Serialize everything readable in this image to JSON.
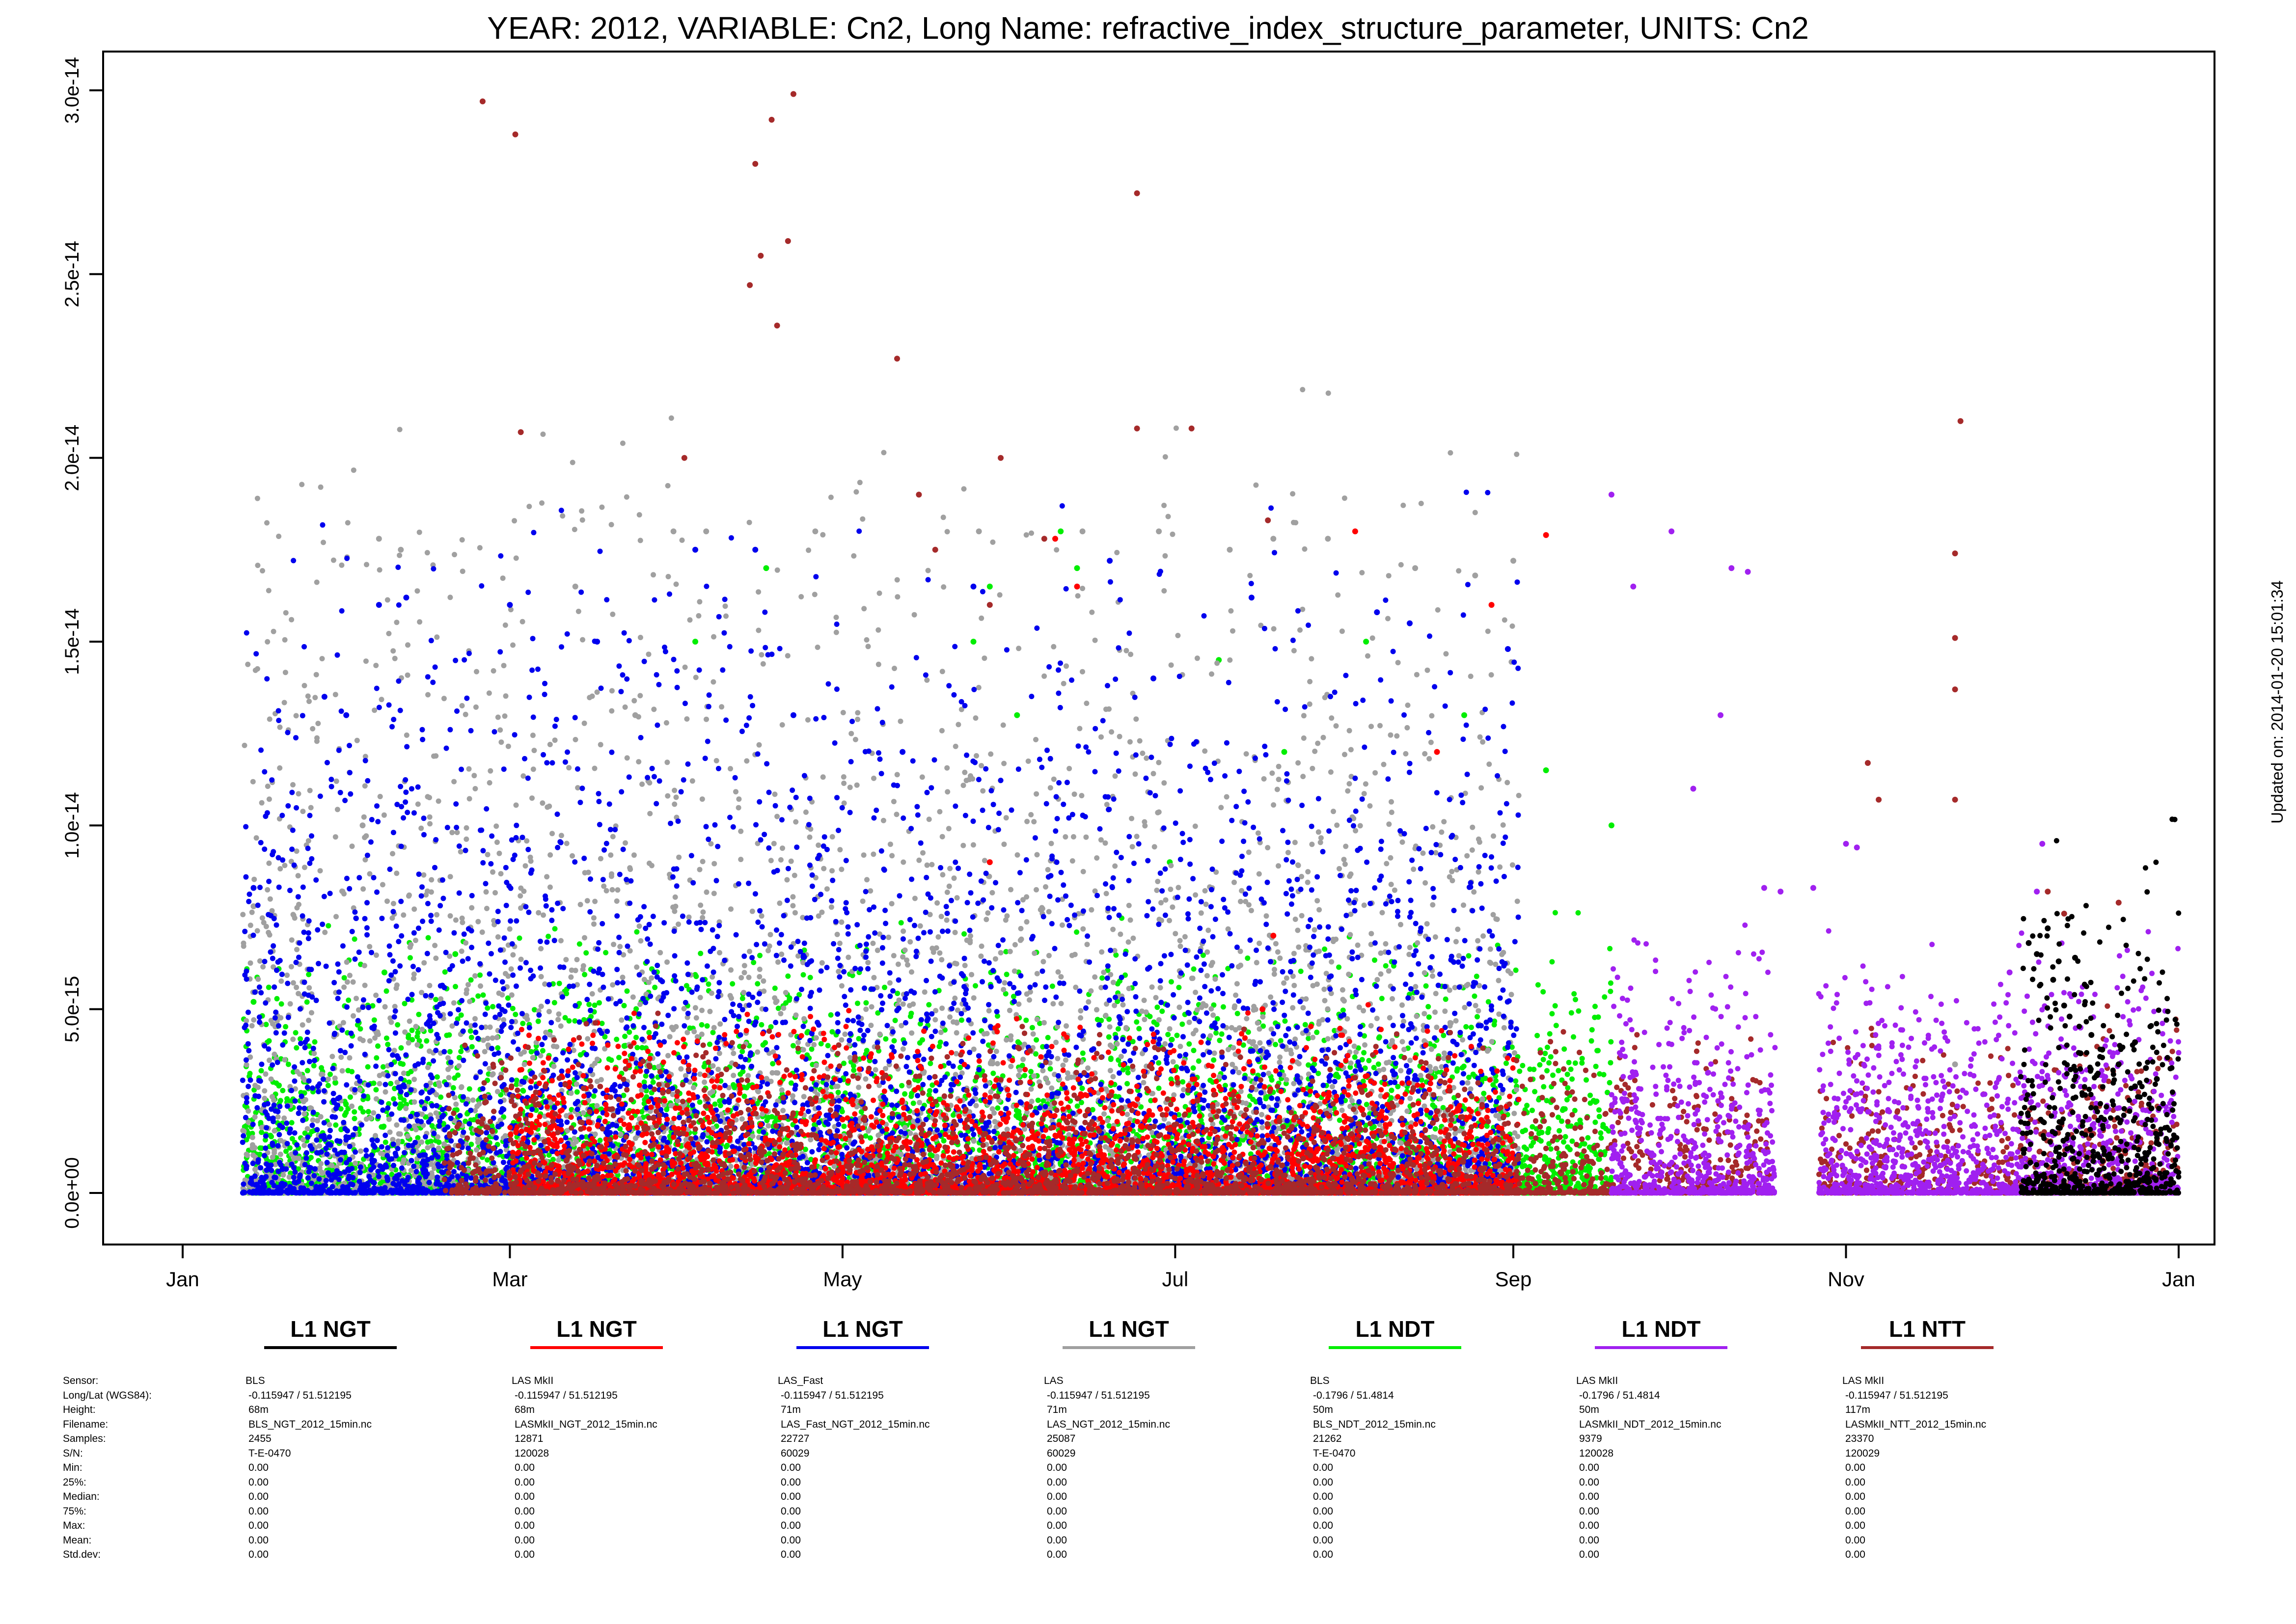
{
  "title": "YEAR: 2012, VARIABLE: Cn2, Long Name: refractive_index_structure_parameter, UNITS: Cn2",
  "updated": "Updated on: 2014-01-20 15:01:34",
  "chart_data": {
    "type": "scatter",
    "title": "YEAR: 2012, VARIABLE: Cn2, Long Name: refractive_index_structure_parameter, UNITS: Cn2",
    "xlabel": "",
    "ylabel": "",
    "x_ticks": [
      "Jan",
      "Mar",
      "May",
      "Jul",
      "Sep",
      "Nov",
      "Jan"
    ],
    "x_tick_days": [
      0,
      60,
      121,
      182,
      244,
      305,
      366
    ],
    "xlim": [
      0,
      366
    ],
    "y_ticks": [
      "0.0e+00",
      "5.0e-15",
      "1.0e-14",
      "1.5e-14",
      "2.0e-14",
      "2.5e-14",
      "3.0e-14"
    ],
    "y_tick_values": [
      0,
      5e-15,
      1e-14,
      1.5e-14,
      2e-14,
      2.5e-14,
      3e-14
    ],
    "ylim": [
      -1.2e-15,
      3.1e-14
    ],
    "grid": false,
    "series": [
      {
        "name": "L1 NGT",
        "color": "#000000",
        "day_range": [
          337,
          366
        ],
        "typical_max": 8e-15,
        "points": [
          [
            338.5,
            6.8e-15
          ],
          [
            340,
            6.5e-15
          ],
          [
            342,
            7.2e-15
          ],
          [
            344,
            6.3e-15
          ],
          [
            343,
            5.8e-15
          ],
          [
            345,
            5.1e-15
          ],
          [
            347,
            6.4e-15
          ],
          [
            346,
            4.8e-15
          ],
          [
            350,
            4.3e-15
          ],
          [
            352,
            3.9e-15
          ],
          [
            355,
            3.5e-15
          ],
          [
            358,
            4.1e-15
          ],
          [
            360,
            3.4e-15
          ],
          [
            361,
            2.3e-15
          ],
          [
            358,
            2.9e-15
          ],
          [
            362,
            3.1e-15
          ],
          [
            348,
            3.8e-15
          ],
          [
            351,
            3.2e-15
          ]
        ]
      },
      {
        "name": "L1 NGT",
        "color": "#ff0000",
        "day_range": [
          60,
          245
        ],
        "typical_max": 4e-15,
        "points": [
          [
            160,
            1.78e-14
          ],
          [
            164,
            1.65e-14
          ],
          [
            215,
            1.8e-14
          ],
          [
            240,
            1.6e-14
          ],
          [
            116,
            2.5e-15
          ],
          [
            121,
            2e-15
          ],
          [
            230,
            1.2e-14
          ],
          [
            250,
            1.79e-14
          ],
          [
            198,
            5e-15
          ],
          [
            148,
            9e-15
          ],
          [
            200,
            7e-15
          ],
          [
            189,
            1e-15
          ]
        ]
      },
      {
        "name": "L1 NGT",
        "color": "#0000ee",
        "day_range": [
          11,
          245
        ],
        "typical_max": 1.5e-14,
        "points": [
          [
            13,
            8.3e-15
          ],
          [
            26,
            1.35e-14
          ],
          [
            30,
            1.3e-14
          ],
          [
            36,
            1.6e-14
          ],
          [
            41,
            1.62e-14
          ],
          [
            60,
            1.6e-14
          ],
          [
            76,
            1.5e-14
          ],
          [
            94,
            1.75e-14
          ],
          [
            105,
            1.75e-14
          ],
          [
            145,
            1.65e-14
          ],
          [
            170,
            1.72e-14
          ],
          [
            196,
            1.62e-14
          ],
          [
            219,
            1.58e-14
          ],
          [
            225,
            1.55e-14
          ],
          [
            243,
            1.48e-14
          ],
          [
            132,
            1.2e-14
          ],
          [
            112,
            1.3e-14
          ],
          [
            178,
            1.4e-14
          ]
        ]
      },
      {
        "name": "L1 NGT",
        "color": "#a0a0a0",
        "day_range": [
          11,
          245
        ],
        "typical_max": 1.7e-14,
        "points": [
          [
            13,
            7.8e-15
          ],
          [
            36,
            1.78e-14
          ],
          [
            40,
            1.75e-14
          ],
          [
            72,
            1.65e-14
          ],
          [
            90,
            1.8e-14
          ],
          [
            96,
            1.8e-14
          ],
          [
            116,
            1.8e-14
          ],
          [
            146,
            1.8e-14
          ],
          [
            165,
            1.8e-14
          ],
          [
            179,
            1.8e-14
          ],
          [
            192,
            1.75e-14
          ],
          [
            200,
            1.78e-14
          ],
          [
            210,
            1.78e-14
          ],
          [
            226,
            1.7e-14
          ],
          [
            237,
            1.68e-14
          ],
          [
            244,
            1.72e-14
          ],
          [
            325,
            3.5e-15
          ],
          [
            360,
            3.4e-15
          ],
          [
            83,
            1.3e-14
          ],
          [
            33,
            1e-14
          ]
        ]
      },
      {
        "name": "L1 NDT",
        "color": "#00ee00",
        "day_range": [
          11,
          262
        ],
        "typical_max": 6e-15,
        "points": [
          [
            13,
            5.2e-15
          ],
          [
            20,
            2.5e-15
          ],
          [
            28,
            3e-15
          ],
          [
            37,
            6e-15
          ],
          [
            50,
            6.5e-15
          ],
          [
            81,
            4e-15
          ],
          [
            94,
            1.5e-14
          ],
          [
            107,
            1.7e-14
          ],
          [
            145,
            1.5e-14
          ],
          [
            148,
            1.65e-14
          ],
          [
            153,
            1.3e-14
          ],
          [
            161,
            1.8e-14
          ],
          [
            164,
            1.7e-14
          ],
          [
            190,
            1.45e-14
          ],
          [
            202,
            1.2e-14
          ],
          [
            217,
            1.5e-14
          ],
          [
            235,
            1.3e-14
          ],
          [
            250,
            1.15e-14
          ],
          [
            262,
            1e-14
          ],
          [
            181,
            9e-15
          ]
        ]
      },
      {
        "name": "L1 NDT",
        "color": "#a020f0",
        "day_range": [
          262,
          366
        ],
        "typical_max": 6e-15,
        "points": [
          [
            262,
            1.9e-14
          ],
          [
            266,
            1.65e-14
          ],
          [
            273,
            1.8e-14
          ],
          [
            284,
            1.7e-14
          ],
          [
            287,
            1.69e-14
          ],
          [
            290,
            8.3e-15
          ],
          [
            293,
            8.2e-15
          ],
          [
            299,
            8.3e-15
          ],
          [
            305,
            9.5e-15
          ],
          [
            307,
            9.4e-15
          ],
          [
            341,
            9.5e-15
          ],
          [
            335,
            6e-15
          ],
          [
            340,
            8.2e-15
          ],
          [
            348,
            4.5e-15
          ],
          [
            354,
            3.8e-15
          ],
          [
            365,
            2.7e-15
          ],
          [
            282,
            1.3e-14
          ],
          [
            277,
            1.1e-14
          ]
        ]
      },
      {
        "name": "L1 NTT",
        "color": "#a52a2a",
        "day_range": [
          48,
          366
        ],
        "typical_max": 4e-15,
        "points": [
          [
            55,
            2.97e-14
          ],
          [
            61,
            2.88e-14
          ],
          [
            62,
            2.07e-14
          ],
          [
            92,
            2e-14
          ],
          [
            105,
            2.8e-14
          ],
          [
            108,
            2.92e-14
          ],
          [
            112,
            2.99e-14
          ],
          [
            111,
            2.59e-14
          ],
          [
            109,
            2.36e-14
          ],
          [
            104,
            2.47e-14
          ],
          [
            106,
            2.55e-14
          ],
          [
            131,
            2.27e-14
          ],
          [
            150,
            2e-14
          ],
          [
            175,
            2.72e-14
          ],
          [
            175,
            2.08e-14
          ],
          [
            185,
            2.08e-14
          ],
          [
            199,
            1.83e-14
          ],
          [
            309,
            1.17e-14
          ],
          [
            311,
            1.07e-14
          ],
          [
            326,
            2.1e-14
          ],
          [
            325,
            1.74e-14
          ],
          [
            325,
            1.51e-14
          ],
          [
            325,
            1.37e-14
          ],
          [
            325,
            1.07e-14
          ],
          [
            342,
            8.2e-15
          ],
          [
            345,
            7.6e-15
          ],
          [
            355,
            7.9e-15
          ],
          [
            135,
            1.9e-14
          ],
          [
            138,
            1.75e-14
          ],
          [
            148,
            1.6e-14
          ],
          [
            158,
            1.78e-14
          ]
        ]
      }
    ],
    "legend": [
      {
        "label": "L1 NGT",
        "color": "#000000"
      },
      {
        "label": "L1 NGT",
        "color": "#ff0000"
      },
      {
        "label": "L1 NGT",
        "color": "#0000ee"
      },
      {
        "label": "L1 NGT",
        "color": "#a0a0a0"
      },
      {
        "label": "L1 NDT",
        "color": "#00ee00"
      },
      {
        "label": "L1 NDT",
        "color": "#a020f0"
      },
      {
        "label": "L1 NTT",
        "color": "#a52a2a"
      }
    ],
    "legend_position": "bottom"
  },
  "info_labels": [
    "Sensor:",
    "Long/Lat (WGS84):",
    "Height:",
    "Filename:",
    "Samples:",
    "S/N:",
    "Min:",
    "25%:",
    "Median:",
    "75%:",
    "Max:",
    "Mean:",
    "Std.dev:"
  ],
  "sensors": [
    {
      "sensor": "BLS",
      "longlat": "-0.115947 / 51.512195",
      "height": "68m",
      "filename": "BLS_NGT_2012_15min.nc",
      "samples": "2455",
      "sn": "T-E-0470",
      "min": "0.00",
      "q25": "0.00",
      "median": "0.00",
      "q75": "0.00",
      "max": "0.00",
      "mean": "0.00",
      "std": "0.00"
    },
    {
      "sensor": "LAS MkII",
      "longlat": "-0.115947 / 51.512195",
      "height": "68m",
      "filename": "LASMkII_NGT_2012_15min.nc",
      "samples": "12871",
      "sn": "120028",
      "min": "0.00",
      "q25": "0.00",
      "median": "0.00",
      "q75": "0.00",
      "max": "0.00",
      "mean": "0.00",
      "std": "0.00"
    },
    {
      "sensor": "LAS_Fast",
      "longlat": "-0.115947 / 51.512195",
      "height": "71m",
      "filename": "LAS_Fast_NGT_2012_15min.nc",
      "samples": "22727",
      "sn": "60029",
      "min": "0.00",
      "q25": "0.00",
      "median": "0.00",
      "q75": "0.00",
      "max": "0.00",
      "mean": "0.00",
      "std": "0.00"
    },
    {
      "sensor": "LAS",
      "longlat": "-0.115947 / 51.512195",
      "height": "71m",
      "filename": "LAS_NGT_2012_15min.nc",
      "samples": "25087",
      "sn": "60029",
      "min": "0.00",
      "q25": "0.00",
      "median": "0.00",
      "q75": "0.00",
      "max": "0.00",
      "mean": "0.00",
      "std": "0.00"
    },
    {
      "sensor": "BLS",
      "longlat": "-0.1796 / 51.4814",
      "height": "50m",
      "filename": "BLS_NDT_2012_15min.nc",
      "samples": "21262",
      "sn": "T-E-0470",
      "min": "0.00",
      "q25": "0.00",
      "median": "0.00",
      "q75": "0.00",
      "max": "0.00",
      "mean": "0.00",
      "std": "0.00"
    },
    {
      "sensor": "LAS MkII",
      "longlat": "-0.1796 / 51.4814",
      "height": "50m",
      "filename": "LASMkII_NDT_2012_15min.nc",
      "samples": "9379",
      "sn": "120028",
      "min": "0.00",
      "q25": "0.00",
      "median": "0.00",
      "q75": "0.00",
      "max": "0.00",
      "mean": "0.00",
      "std": "0.00"
    },
    {
      "sensor": "LAS MkII",
      "longlat": "-0.115947 / 51.512195",
      "height": "117m",
      "filename": "LASMkII_NTT_2012_15min.nc",
      "samples": "23370",
      "sn": "120029",
      "min": "0.00",
      "q25": "0.00",
      "median": "0.00",
      "q75": "0.00",
      "max": "0.00",
      "mean": "0.00",
      "std": "0.00"
    }
  ]
}
